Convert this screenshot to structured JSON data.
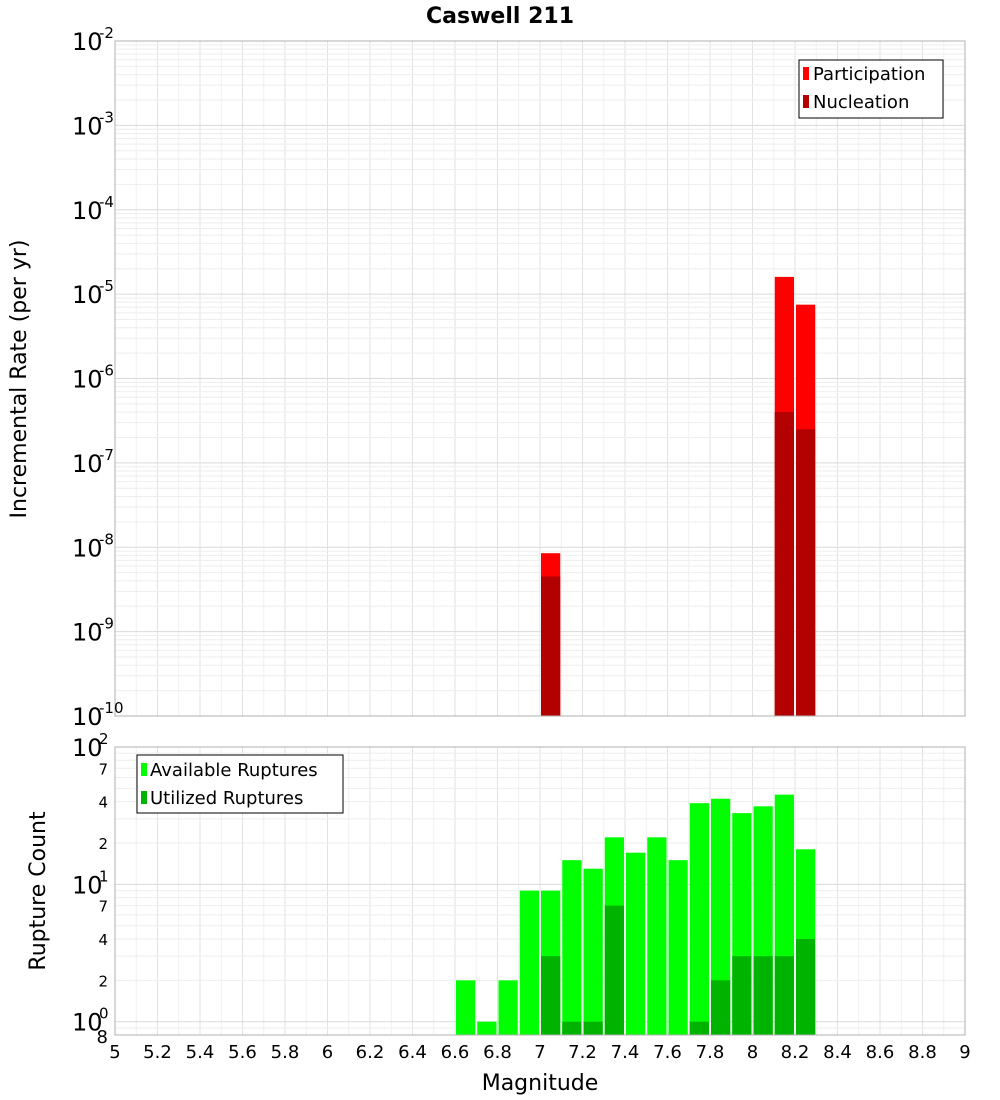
{
  "chart_data": {
    "title": "Caswell 211",
    "xlabel": "Magnitude",
    "xlim": [
      5,
      9
    ],
    "xticks": [
      "5",
      "5.2",
      "5.4",
      "5.6",
      "5.8",
      "6",
      "6.2",
      "6.4",
      "6.6",
      "6.8",
      "7",
      "7.2",
      "7.4",
      "7.6",
      "7.8",
      "8",
      "8.2",
      "8.4",
      "8.6",
      "8.8",
      "9"
    ],
    "bin_width": 0.1,
    "panels": [
      {
        "type": "bar",
        "ylabel": "Incremental Rate (per yr)",
        "yscale": "log",
        "ylim": [
          1e-10,
          0.01
        ],
        "ytick_exponents": [
          "-10",
          "-9",
          "-8",
          "-7",
          "-6",
          "-5",
          "-4",
          "-3",
          "-2"
        ],
        "ytick_base": "10",
        "grid": true,
        "legend_position": "top-right",
        "series": [
          {
            "name": "Participation",
            "color": "#ff0000",
            "points": [
              [
                7.05,
                8.5e-09
              ],
              [
                8.15,
                1.6e-05
              ],
              [
                8.25,
                7.5e-06
              ]
            ]
          },
          {
            "name": "Nucleation",
            "color": "#b30000",
            "points": [
              [
                7.05,
                4.5e-09
              ],
              [
                8.15,
                4e-07
              ],
              [
                8.25,
                2.5e-07
              ]
            ]
          }
        ]
      },
      {
        "type": "bar",
        "ylabel": "Rupture Count",
        "yscale": "log",
        "ylim": [
          0.8,
          100
        ],
        "ytick_base": "10",
        "ytick_exponents": [
          "0",
          "1",
          "2"
        ],
        "yminor_labels": [
          "8",
          "2",
          "4",
          "7",
          "2",
          "4",
          "7"
        ],
        "grid": true,
        "legend_position": "top-left",
        "series": [
          {
            "name": "Available Ruptures",
            "color": "#00ff00",
            "points": [
              [
                6.65,
                2
              ],
              [
                6.75,
                1
              ],
              [
                6.85,
                2
              ],
              [
                6.95,
                9
              ],
              [
                7.05,
                9
              ],
              [
                7.15,
                15
              ],
              [
                7.25,
                13
              ],
              [
                7.35,
                22
              ],
              [
                7.45,
                17
              ],
              [
                7.55,
                22
              ],
              [
                7.65,
                15
              ],
              [
                7.75,
                39
              ],
              [
                7.85,
                42
              ],
              [
                7.95,
                33
              ],
              [
                8.05,
                37
              ],
              [
                8.15,
                45
              ],
              [
                8.25,
                18
              ]
            ]
          },
          {
            "name": "Utilized Ruptures",
            "color": "#00b300",
            "points": [
              [
                7.05,
                3
              ],
              [
                7.15,
                1
              ],
              [
                7.25,
                1
              ],
              [
                7.35,
                7
              ],
              [
                7.75,
                1
              ],
              [
                7.85,
                2
              ],
              [
                7.95,
                3
              ],
              [
                8.05,
                3
              ],
              [
                8.15,
                3
              ],
              [
                8.25,
                4
              ]
            ]
          }
        ]
      }
    ]
  }
}
